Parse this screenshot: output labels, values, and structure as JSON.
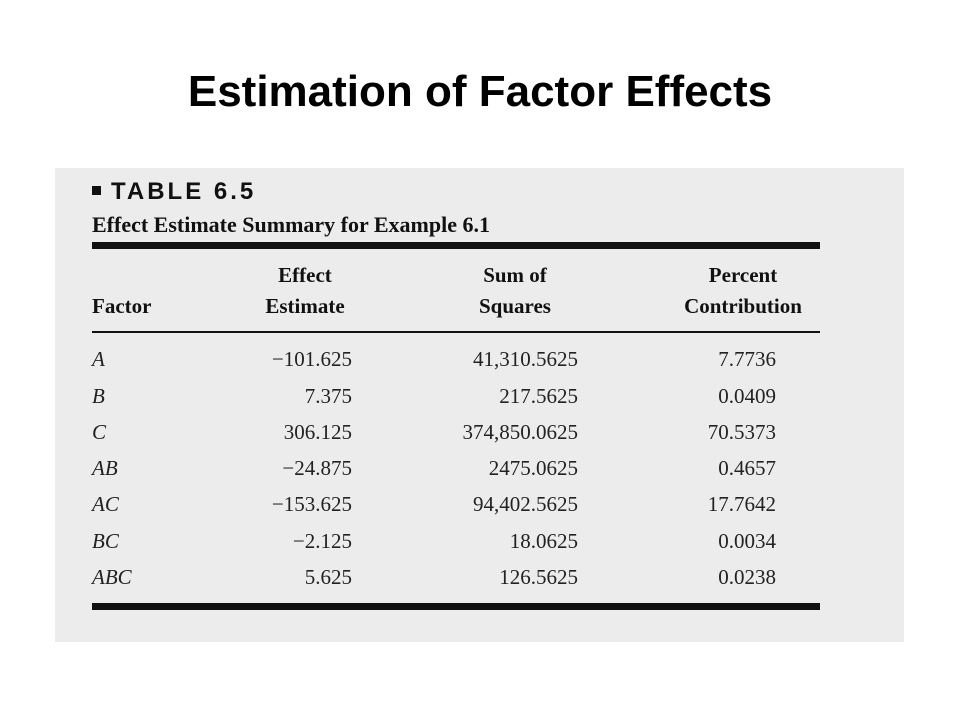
{
  "slide": {
    "title": "Estimation of Factor Effects"
  },
  "table": {
    "label": "TABLE 6.5",
    "caption": "Effect Estimate Summary for Example 6.1",
    "headers": {
      "factor": "Factor",
      "effect_line1": "Effect",
      "effect_line2": "Estimate",
      "ss_line1": "Sum of",
      "ss_line2": "Squares",
      "pct_line1": "Percent",
      "pct_line2": "Contribution"
    },
    "rows": [
      {
        "factor": "A",
        "effect": "−101.625",
        "ss": "41,310.5625",
        "pct": "7.7736"
      },
      {
        "factor": "B",
        "effect": "7.375",
        "ss": "217.5625",
        "pct": "0.0409"
      },
      {
        "factor": "C",
        "effect": "306.125",
        "ss": "374,850.0625",
        "pct": "70.5373"
      },
      {
        "factor": "AB",
        "effect": "−24.875",
        "ss": "2475.0625",
        "pct": "0.4657"
      },
      {
        "factor": "AC",
        "effect": "−153.625",
        "ss": "94,402.5625",
        "pct": "17.7642"
      },
      {
        "factor": "BC",
        "effect": "−2.125",
        "ss": "18.0625",
        "pct": "0.0034"
      },
      {
        "factor": "ABC",
        "effect": "5.625",
        "ss": "126.5625",
        "pct": "0.0238"
      }
    ]
  }
}
